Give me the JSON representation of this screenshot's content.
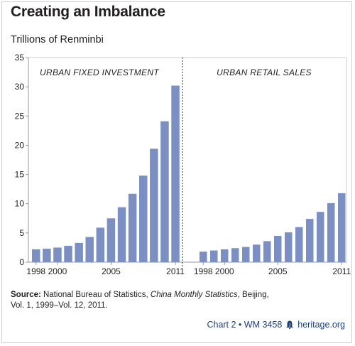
{
  "header": {
    "title": "Creating an Imbalance",
    "subtitle": "Trillions of Renminbi"
  },
  "footer": {
    "source_label": "Source:",
    "source_text_1": " National Bureau of Statistics, ",
    "source_italic": "China Monthly Statistics",
    "source_text_2": ", Beijing,",
    "source_line_2": "Vol. 1, 1999–Vol. 12, 2011.",
    "chart_ref": "Chart 2 • WM 3458",
    "site": "heritage.org",
    "bell_icon": "liberty-bell-icon"
  },
  "colors": {
    "bar": "#7b8fc2",
    "grid": "#999999",
    "credit": "#1f3f7a"
  },
  "chart_data": [
    {
      "type": "bar",
      "title": "URBAN FIXED INVESTMENT",
      "categories": [
        "1998",
        "1999",
        "2000",
        "2001",
        "2002",
        "2003",
        "2004",
        "2005",
        "2006",
        "2007",
        "2008",
        "2009",
        "2010",
        "2011"
      ],
      "tick_labels": [
        "1998",
        "2000",
        "2005",
        "2011"
      ],
      "tick_categories": [
        "1998",
        "2000",
        "2005",
        "2011"
      ],
      "values": [
        2.2,
        2.3,
        2.5,
        2.8,
        3.3,
        4.3,
        5.9,
        7.5,
        9.4,
        11.7,
        14.8,
        19.4,
        24.1,
        30.2
      ],
      "ylabel": "Trillions of Renminbi",
      "ylim": [
        0,
        35
      ],
      "yticks": [
        0,
        5,
        10,
        15,
        20,
        25,
        30,
        35
      ]
    },
    {
      "type": "bar",
      "title": "URBAN RETAIL SALES",
      "categories": [
        "1998",
        "1999",
        "2000",
        "2001",
        "2002",
        "2003",
        "2004",
        "2005",
        "2006",
        "2007",
        "2008",
        "2009",
        "2010",
        "2011"
      ],
      "tick_labels": [
        "1998",
        "2000",
        "2005",
        "2011"
      ],
      "tick_categories": [
        "1998",
        "2000",
        "2005",
        "2011"
      ],
      "values": [
        1.8,
        2.0,
        2.2,
        2.4,
        2.6,
        3.0,
        3.6,
        4.5,
        5.1,
        6.0,
        7.4,
        8.6,
        10.1,
        11.8
      ],
      "ylim": [
        0,
        35
      ]
    }
  ]
}
